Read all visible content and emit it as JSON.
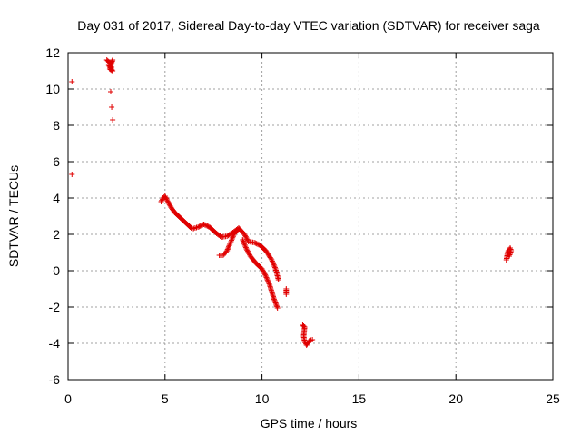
{
  "chart_data": {
    "type": "scatter",
    "title": "Day 031 of 2017, Sidereal Day-to-day VTEC variation (SDTVAR) for receiver saga",
    "xlabel": "GPS time / hours",
    "ylabel": "SDTVAR / TECUs",
    "xlim": [
      0,
      25
    ],
    "ylim": [
      -6,
      12
    ],
    "x_ticks": [
      0,
      5,
      10,
      15,
      20,
      25
    ],
    "y_ticks": [
      -6,
      -4,
      -2,
      0,
      2,
      4,
      6,
      8,
      10,
      12
    ],
    "x_tick_labels": [
      "0",
      "5",
      "10",
      "15",
      "20",
      "25"
    ],
    "y_tick_labels": [
      "-6",
      "-4",
      "-2",
      "0",
      "2",
      "4",
      "6",
      "8",
      "10",
      "12"
    ],
    "grid": true,
    "marker": "+",
    "color": "#e00000",
    "series": [
      {
        "name": "saga",
        "segments": [
          [
            [
              0.2,
              10.4
            ]
          ],
          [
            [
              0.2,
              5.3
            ]
          ],
          [
            [
              2.0,
              11.6
            ],
            [
              2.1,
              11.5
            ],
            [
              2.2,
              11.4
            ],
            [
              2.3,
              11.6
            ],
            [
              2.15,
              11.1
            ],
            [
              2.3,
              11.0
            ],
            [
              2.1,
              11.3
            ],
            [
              2.25,
              11.2
            ]
          ],
          [
            [
              2.2,
              9.85
            ]
          ],
          [
            [
              2.25,
              9.0
            ]
          ],
          [
            [
              2.3,
              8.3
            ]
          ],
          [
            [
              4.8,
              3.8
            ],
            [
              4.9,
              4.0
            ],
            [
              5.0,
              4.1
            ],
            [
              5.1,
              3.9
            ],
            [
              5.3,
              3.5
            ],
            [
              5.5,
              3.2
            ],
            [
              5.8,
              2.9
            ],
            [
              6.1,
              2.6
            ],
            [
              6.4,
              2.3
            ],
            [
              6.7,
              2.4
            ],
            [
              7.0,
              2.55
            ],
            [
              7.3,
              2.4
            ],
            [
              7.6,
              2.1
            ],
            [
              7.9,
              1.85
            ],
            [
              8.2,
              1.9
            ],
            [
              8.5,
              2.1
            ],
            [
              8.8,
              2.35
            ],
            [
              9.1,
              2.0
            ],
            [
              9.3,
              1.6
            ],
            [
              9.6,
              1.55
            ],
            [
              9.9,
              1.4
            ],
            [
              10.2,
              1.1
            ],
            [
              10.5,
              0.6
            ],
            [
              10.7,
              0.1
            ],
            [
              10.85,
              -0.5
            ]
          ],
          [
            [
              7.8,
              0.85
            ],
            [
              8.0,
              0.85
            ],
            [
              8.2,
              1.1
            ],
            [
              8.4,
              1.6
            ],
            [
              8.6,
              2.1
            ],
            [
              8.8,
              2.3
            ]
          ],
          [
            [
              9.0,
              1.7
            ],
            [
              9.2,
              1.2
            ],
            [
              9.4,
              0.8
            ],
            [
              9.7,
              0.4
            ],
            [
              10.0,
              0.1
            ],
            [
              10.2,
              -0.3
            ],
            [
              10.4,
              -0.8
            ],
            [
              10.6,
              -1.5
            ],
            [
              10.8,
              -2.05
            ]
          ],
          [
            [
              11.25,
              -1.0
            ],
            [
              11.25,
              -1.3
            ]
          ],
          [
            [
              12.1,
              -3.0
            ],
            [
              12.2,
              -3.1
            ],
            [
              12.15,
              -3.6
            ],
            [
              12.2,
              -3.9
            ],
            [
              12.3,
              -4.1
            ],
            [
              12.45,
              -3.85
            ],
            [
              12.6,
              -3.8
            ]
          ],
          [
            [
              22.6,
              0.6
            ],
            [
              22.65,
              0.9
            ],
            [
              22.7,
              1.1
            ],
            [
              22.8,
              1.25
            ],
            [
              22.85,
              1.1
            ],
            [
              22.75,
              0.8
            ]
          ]
        ]
      }
    ]
  }
}
